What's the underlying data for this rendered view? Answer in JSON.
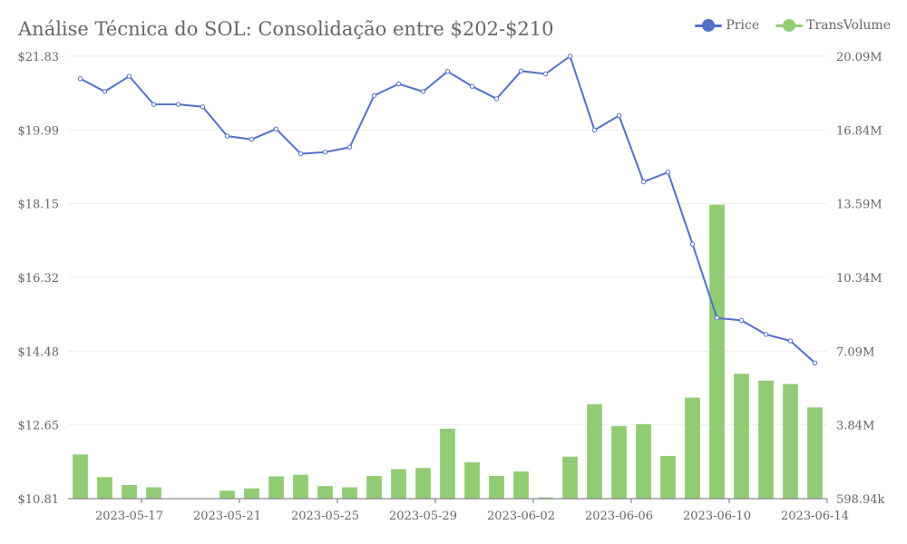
{
  "chart_data": {
    "type": "bar+line",
    "title": "Análise Técnica do SOL: Consolidação entre $202-$210",
    "legend": [
      {
        "name": "Price",
        "color": "#5470c6"
      },
      {
        "name": "TransVolume",
        "color": "#91cc75"
      }
    ],
    "x": [
      "2023-05-15",
      "2023-05-16",
      "2023-05-17",
      "2023-05-18",
      "2023-05-19",
      "2023-05-20",
      "2023-05-21",
      "2023-05-22",
      "2023-05-23",
      "2023-05-24",
      "2023-05-25",
      "2023-05-26",
      "2023-05-27",
      "2023-05-28",
      "2023-05-29",
      "2023-05-30",
      "2023-05-31",
      "2023-06-01",
      "2023-06-02",
      "2023-06-03",
      "2023-06-04",
      "2023-06-05",
      "2023-06-06",
      "2023-06-07",
      "2023-06-08",
      "2023-06-09",
      "2023-06-10",
      "2023-06-11",
      "2023-06-12",
      "2023-06-13",
      "2023-06-14"
    ],
    "x_tick_labels": [
      "2023-05-17",
      "2023-05-21",
      "2023-05-25",
      "2023-05-29",
      "2023-06-02",
      "2023-06-06",
      "2023-06-10",
      "2023-06-14"
    ],
    "series": [
      {
        "name": "Price",
        "type": "line",
        "axis": "left",
        "values": [
          21.27,
          20.95,
          21.33,
          20.63,
          20.63,
          20.57,
          19.84,
          19.76,
          20.02,
          19.4,
          19.44,
          19.56,
          20.85,
          21.14,
          20.95,
          21.45,
          21.08,
          20.77,
          21.46,
          21.39,
          21.83,
          19.99,
          20.35,
          18.7,
          18.94,
          17.15,
          15.31,
          15.25,
          14.9,
          14.74,
          14.19
        ]
      },
      {
        "name": "TransVolume",
        "type": "bar",
        "axis": "right",
        "values": [
          2550000,
          1550000,
          1200000,
          1100000,
          540000,
          520000,
          950000,
          1050000,
          1580000,
          1650000,
          1150000,
          1100000,
          1600000,
          1900000,
          1950000,
          3680000,
          2200000,
          1600000,
          1800000,
          650000,
          2450000,
          4760000,
          3800000,
          3880000,
          2480000,
          5050000,
          13550000,
          6100000,
          5800000,
          5650000,
          4620000
        ]
      }
    ],
    "y_left": {
      "min": 10.81,
      "max": 21.83,
      "ticks": [
        "$10.81",
        "$12.65",
        "$14.48",
        "$16.32",
        "$18.15",
        "$19.99",
        "$21.83"
      ]
    },
    "y_right": {
      "min": 598940,
      "max": 20090000,
      "ticks": [
        "598.94k",
        "3.84M",
        "7.09M",
        "10.34M",
        "13.59M",
        "16.84M",
        "20.09M"
      ]
    }
  }
}
